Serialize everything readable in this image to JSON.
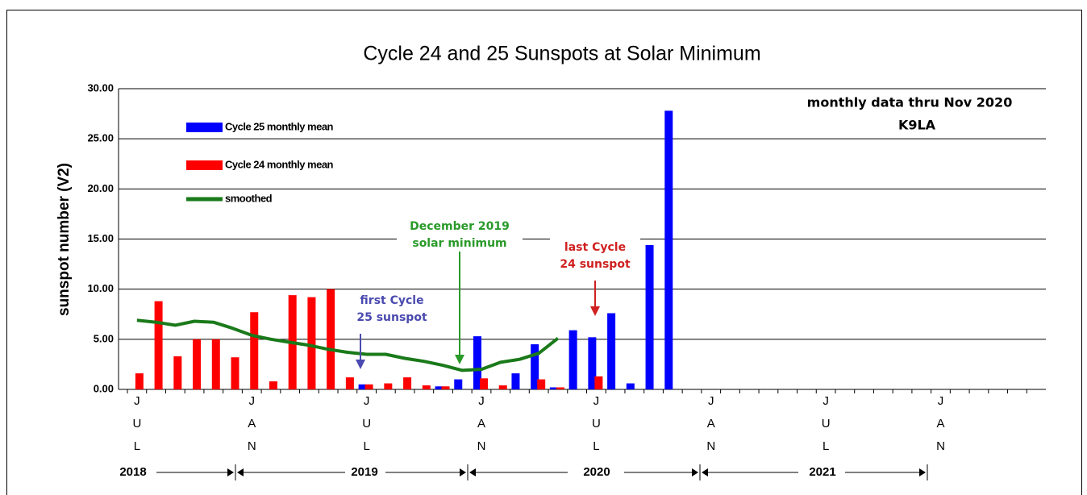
{
  "chart_data": {
    "type": "bar",
    "title": "Cycle 24 and 25 Sunspots at Solar Minimum",
    "y_label": "sunspot number  (V2)",
    "annotations": {
      "data_note": "monthly data thru Nov 2020",
      "author": "K9LA",
      "minimum": [
        "December 2019",
        "solar minimum"
      ],
      "first": [
        "first Cycle",
        "25 sunspot"
      ],
      "last": [
        "last Cycle",
        "24 sunspot"
      ]
    },
    "year_labels": [
      "2018",
      "2019",
      "2020",
      "2021"
    ],
    "categories": [
      "JUL",
      null,
      null,
      null,
      null,
      null,
      "JAN",
      null,
      null,
      null,
      null,
      null,
      "JUL",
      null,
      null,
      null,
      null,
      null,
      "JAN",
      null,
      null,
      null,
      null,
      null,
      "JUL",
      null,
      null,
      null,
      null,
      null,
      "JAN",
      null,
      null,
      null,
      null,
      null,
      "JUL",
      null,
      null,
      null,
      null,
      null,
      "JAN",
      null,
      null,
      null,
      null,
      null
    ],
    "series": [
      {
        "name": "Cycle 25 monthly mean",
        "color": "#0000ff",
        "values": [
          null,
          null,
          null,
          null,
          null,
          null,
          null,
          null,
          null,
          null,
          null,
          null,
          0.5,
          null,
          null,
          null,
          0.3,
          1.0,
          5.3,
          null,
          1.6,
          4.5,
          0.2,
          5.9,
          5.2,
          7.6,
          0.6,
          14.4,
          27.8,
          null,
          null,
          null,
          null,
          null,
          null,
          null,
          null,
          null,
          null,
          null,
          null,
          null,
          null,
          null,
          null,
          null,
          null,
          null
        ]
      },
      {
        "name": "Cycle 24 monthly mean",
        "color": "#ff0000",
        "values": [
          1.6,
          8.8,
          3.3,
          5.0,
          5.0,
          3.2,
          7.7,
          0.8,
          9.4,
          9.2,
          10.0,
          1.2,
          0.5,
          0.6,
          1.2,
          0.4,
          0.3,
          null,
          1.1,
          0.4,
          null,
          1.0,
          0.2,
          null,
          1.3,
          null,
          null,
          null,
          null,
          null,
          null,
          null,
          null,
          null,
          null,
          null,
          null,
          null,
          null,
          null,
          null,
          null,
          null,
          null,
          null,
          null,
          null,
          null
        ]
      },
      {
        "name": "smoothed",
        "type": "line",
        "color": "#1a7a1a",
        "values": [
          6.9,
          6.7,
          6.4,
          6.8,
          6.7,
          6.1,
          5.4,
          5.0,
          4.7,
          4.4,
          4.0,
          3.7,
          3.5,
          3.5,
          3.1,
          2.8,
          2.4,
          1.9,
          2.0,
          2.7,
          3.0,
          3.6,
          5.1,
          null,
          null,
          null,
          null,
          null,
          null,
          null,
          null,
          null,
          null,
          null,
          null,
          null,
          null,
          null,
          null,
          null,
          null,
          null,
          null,
          null,
          null,
          null,
          null,
          null
        ]
      }
    ],
    "ylim": [
      0,
      30
    ],
    "yticks": [
      {
        "value": 0,
        "label": "0.00"
      },
      {
        "value": 5,
        "label": "5.00"
      },
      {
        "value": 10,
        "label": "10.00"
      },
      {
        "value": 15,
        "label": "15.00"
      },
      {
        "value": 20,
        "label": "20.00"
      },
      {
        "value": 25,
        "label": "25.00"
      },
      {
        "value": 30,
        "label": "30.00"
      }
    ],
    "grid": true
  }
}
